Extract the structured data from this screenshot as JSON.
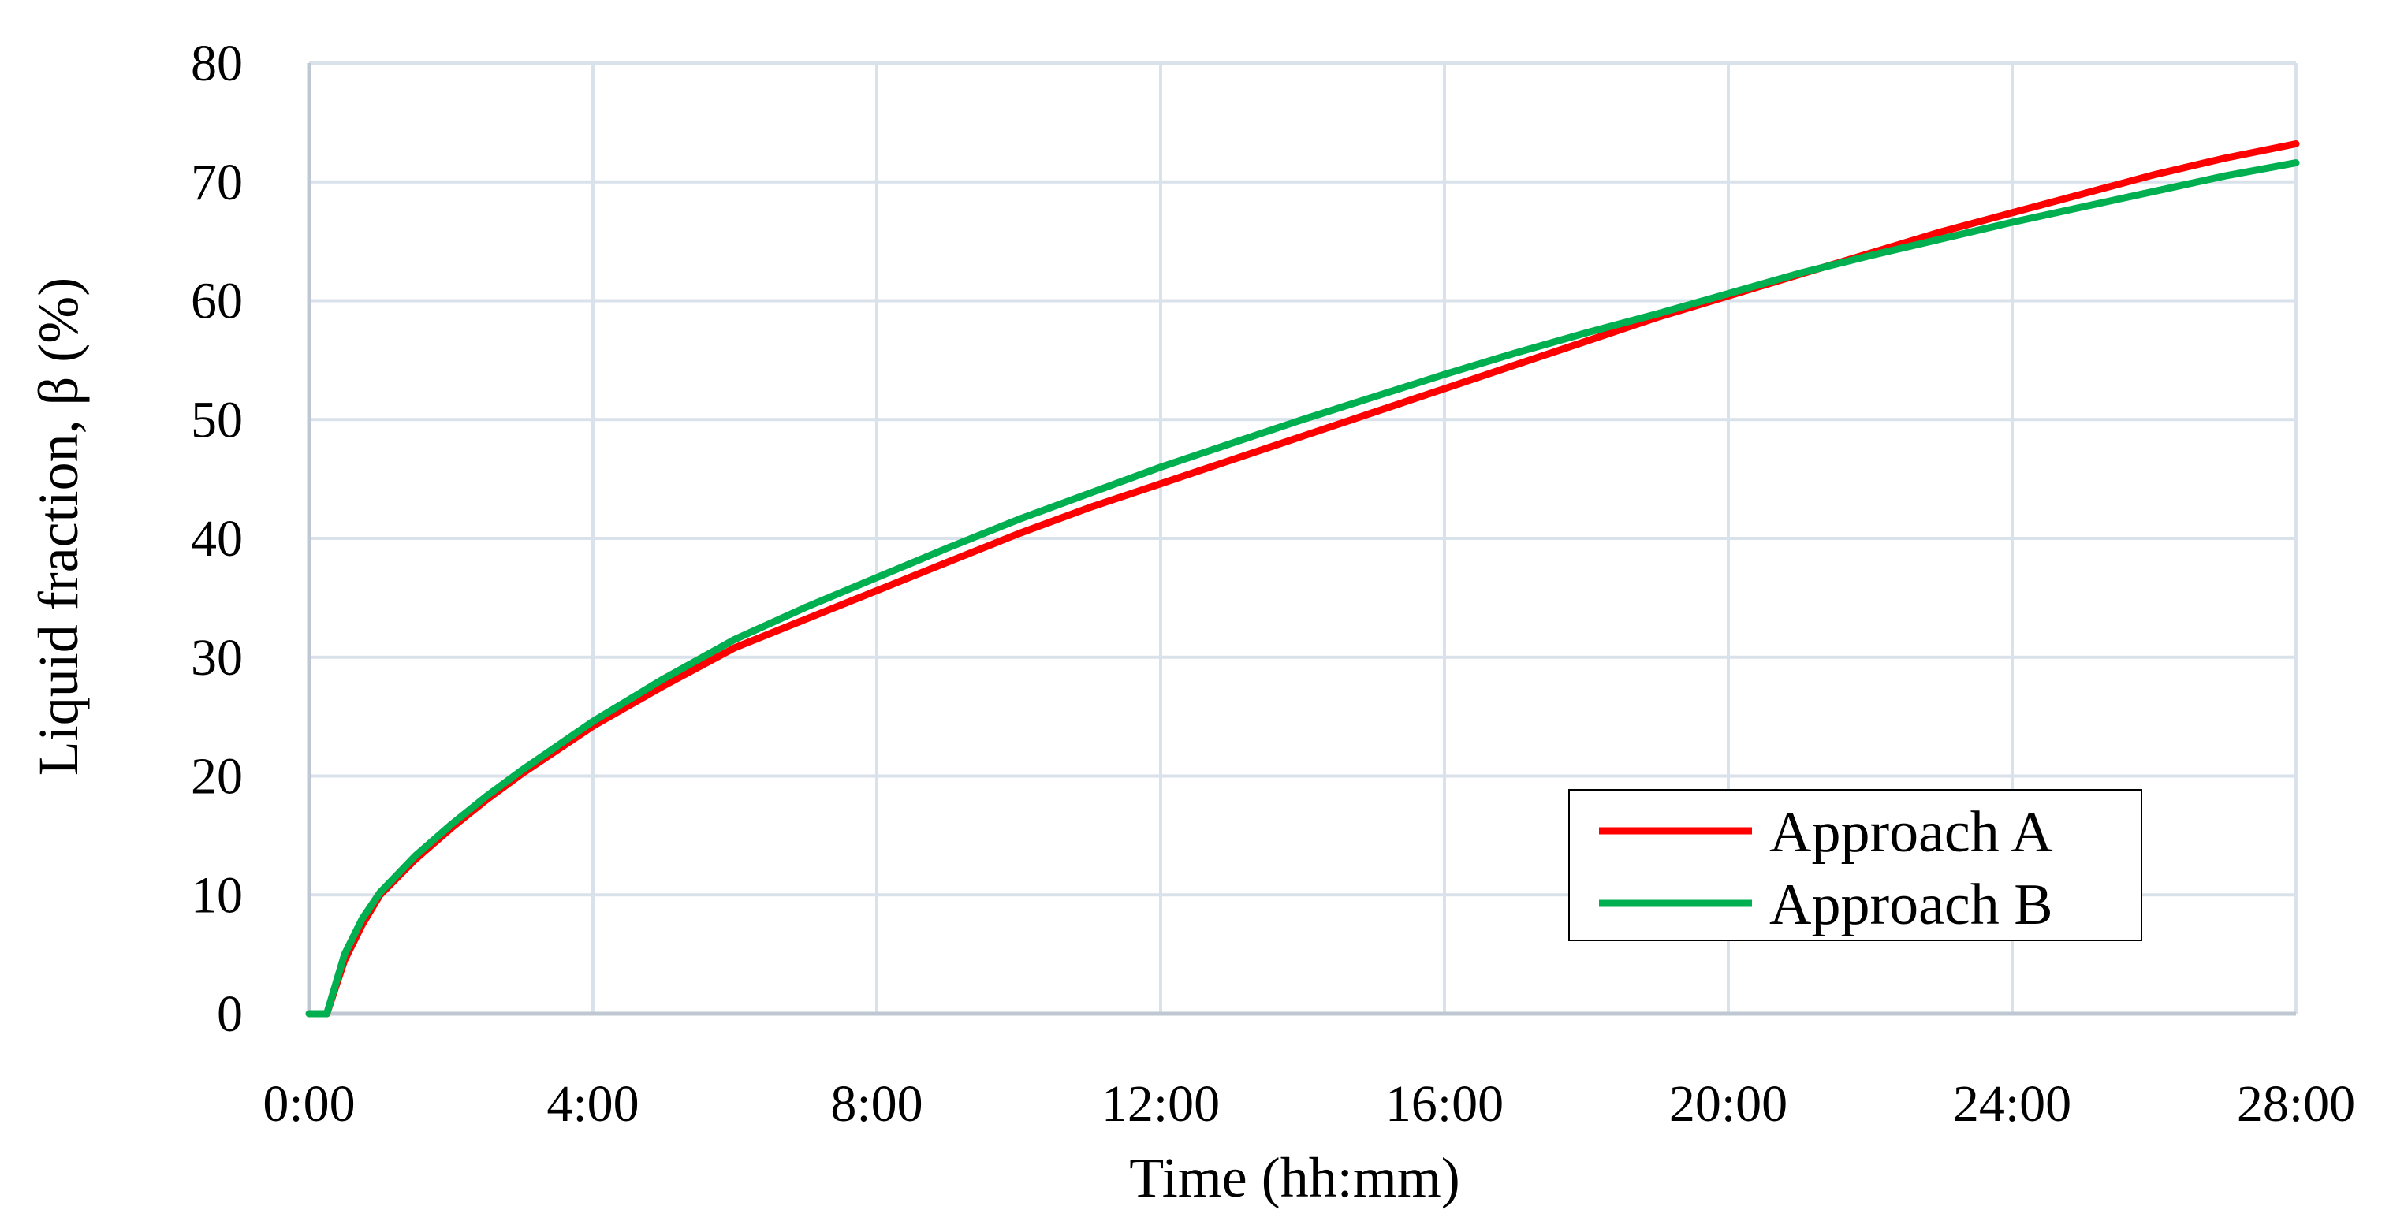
{
  "chart_data": {
    "type": "line",
    "title": "",
    "xlabel": "Time (hh:mm)",
    "ylabel": "Liquid fraction, β (%)",
    "x_unit": "hours",
    "xlim": [
      0,
      28
    ],
    "ylim": [
      0,
      80
    ],
    "x_ticks": [
      0,
      4,
      8,
      12,
      16,
      20,
      24,
      28
    ],
    "x_tick_labels": [
      "0:00",
      "4:00",
      "8:00",
      "12:00",
      "16:00",
      "20:00",
      "24:00",
      "28:00"
    ],
    "y_ticks": [
      0,
      10,
      20,
      30,
      40,
      50,
      60,
      70,
      80
    ],
    "y_tick_labels": [
      "0",
      "10",
      "20",
      "30",
      "40",
      "50",
      "60",
      "70",
      "80"
    ],
    "grid": true,
    "legend_position": "bottom-right",
    "colors": {
      "approach_a": "#ff0000",
      "approach_b": "#00b050",
      "grid": "#d9e1ea",
      "axis": "#bfc8d2"
    },
    "series": [
      {
        "name": "Approach A",
        "color": "#ff0000",
        "x": [
          0,
          0.25,
          0.5,
          0.75,
          1,
          1.5,
          2,
          2.5,
          3,
          4,
          5,
          6,
          7,
          8,
          9,
          10,
          11,
          12,
          13,
          14,
          15,
          16,
          17,
          18,
          19,
          20,
          21,
          22,
          23,
          24,
          25,
          26,
          27,
          28
        ],
        "y": [
          0,
          0,
          4.5,
          7.5,
          10,
          13,
          15.6,
          18,
          20.2,
          24.2,
          27.6,
          30.8,
          33.2,
          35.6,
          38,
          40.4,
          42.6,
          44.6,
          46.6,
          48.6,
          50.6,
          52.6,
          54.6,
          56.6,
          58.6,
          60.4,
          62.2,
          64,
          65.8,
          67.4,
          69,
          70.6,
          72,
          73.2
        ]
      },
      {
        "name": "Approach B",
        "color": "#00b050",
        "x": [
          0,
          0.25,
          0.5,
          0.75,
          1,
          1.5,
          2,
          2.5,
          3,
          4,
          5,
          6,
          7,
          8,
          9,
          10,
          11,
          12,
          13,
          14,
          15,
          16,
          17,
          18,
          19,
          20,
          21,
          22,
          23,
          24,
          25,
          26,
          27,
          28
        ],
        "y": [
          0,
          0,
          5,
          8,
          10.2,
          13.3,
          15.9,
          18.3,
          20.5,
          24.6,
          28.2,
          31.5,
          34.2,
          36.7,
          39.2,
          41.6,
          43.8,
          46,
          48,
          50,
          51.9,
          53.8,
          55.6,
          57.3,
          58.9,
          60.6,
          62.3,
          63.8,
          65.2,
          66.6,
          67.9,
          69.2,
          70.5,
          71.6
        ]
      }
    ]
  }
}
